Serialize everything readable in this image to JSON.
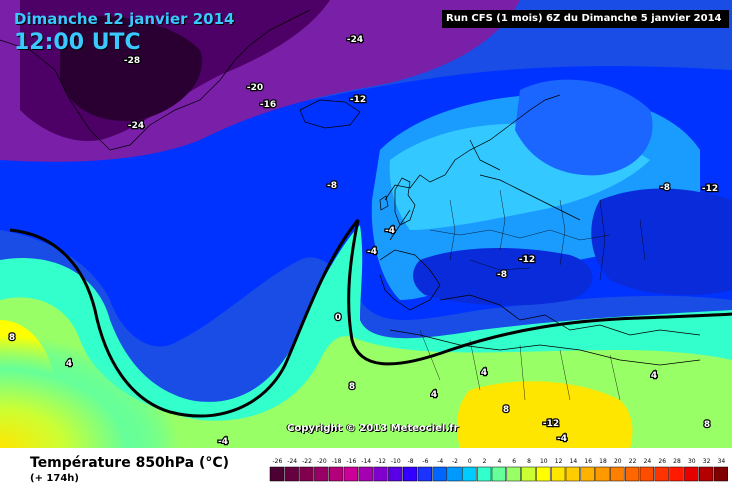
{
  "header": {
    "date": "Dimanche 12 janvier 2014",
    "time": "12:00 UTC",
    "run": "Run CFS (1 mois) 6Z du Dimanche 5 janvier 2014"
  },
  "copyright": "Copyright © 2013 Meteociel.fr",
  "footer": {
    "title": "Température 850hPa (°C)",
    "subtitle": "(+ 174h)"
  },
  "colors": {
    "ocean_base": "#1a4de6",
    "frame": "#000000",
    "label_fill": "#ffffff"
  },
  "legend": {
    "values": [
      "-26",
      "-24",
      "-22",
      "-20",
      "-18",
      "-16",
      "-14",
      "-12",
      "-10",
      "-8",
      "-6",
      "-4",
      "-2",
      "0",
      "2",
      "4",
      "6",
      "8",
      "10",
      "12",
      "14",
      "16",
      "18",
      "20",
      "22",
      "24",
      "26",
      "28",
      "30",
      "32",
      "34"
    ],
    "colors": [
      "#4d0033",
      "#660040",
      "#80004d",
      "#990066",
      "#b3007a",
      "#cc0099",
      "#a600b3",
      "#8000cc",
      "#5900e6",
      "#3300ff",
      "#1a33ff",
      "#0066ff",
      "#0099ff",
      "#00ccff",
      "#33ffcc",
      "#66ff99",
      "#99ff66",
      "#ccff33",
      "#ffff00",
      "#ffe600",
      "#ffcc00",
      "#ffb300",
      "#ff9900",
      "#ff8000",
      "#ff6600",
      "#ff4d00",
      "#ff3300",
      "#ff1a00",
      "#e60000",
      "#b30000",
      "#800000"
    ]
  },
  "map_labels": [
    {
      "text": "-24"
    },
    {
      "text": "-28"
    },
    {
      "text": "-20"
    },
    {
      "text": "-16"
    },
    {
      "text": "-24"
    },
    {
      "text": "-12"
    },
    {
      "text": "-8"
    },
    {
      "text": "-4"
    },
    {
      "text": "-4"
    },
    {
      "text": "-8"
    },
    {
      "text": "-12"
    },
    {
      "text": "-8"
    },
    {
      "text": "-12"
    },
    {
      "text": "0"
    },
    {
      "text": "4"
    },
    {
      "text": "8"
    },
    {
      "text": "4"
    },
    {
      "text": "8"
    },
    {
      "text": "-4"
    },
    {
      "text": "4"
    },
    {
      "text": "8"
    },
    {
      "text": "-12"
    },
    {
      "text": "4"
    },
    {
      "text": "-4"
    },
    {
      "text": "8"
    }
  ]
}
